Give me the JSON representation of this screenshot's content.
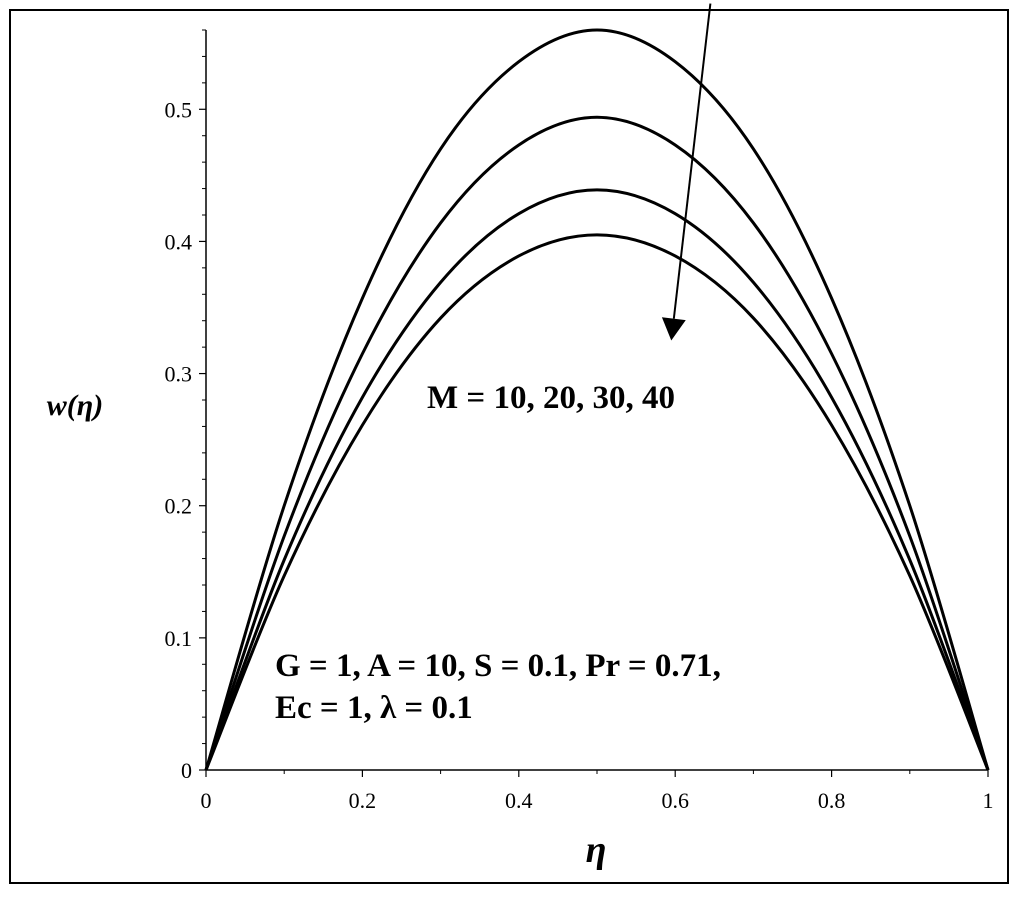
{
  "chart_data": {
    "type": "line",
    "xlabel": "η",
    "ylabel": "w(η)",
    "xlim": [
      0,
      1
    ],
    "ylim": [
      0,
      0.56
    ],
    "x_ticks": [
      "0",
      "0.2",
      "0.4",
      "0.6",
      "0.8",
      "1"
    ],
    "y_ticks": [
      "0",
      "0.1",
      "0.2",
      "0.3",
      "0.4",
      "0.5"
    ],
    "x": [
      0,
      0.1,
      0.2,
      0.3,
      0.4,
      0.5,
      0.6,
      0.7,
      0.8,
      0.9,
      1
    ],
    "series": [
      {
        "values": [
          0,
          0.2,
          0.357,
          0.47,
          0.536,
          0.56,
          0.536,
          0.47,
          0.357,
          0.2,
          0
        ]
      },
      {
        "values": [
          0,
          0.177,
          0.315,
          0.414,
          0.473,
          0.494,
          0.473,
          0.414,
          0.315,
          0.177,
          0
        ]
      },
      {
        "values": [
          0,
          0.159,
          0.282,
          0.369,
          0.421,
          0.439,
          0.421,
          0.369,
          0.282,
          0.159,
          0
        ]
      },
      {
        "values": [
          0,
          0.147,
          0.261,
          0.342,
          0.389,
          0.405,
          0.389,
          0.342,
          0.261,
          0.147,
          0
        ]
      }
    ],
    "grid": false,
    "legend": "none",
    "annotations": {
      "trend": "M = 10, 20, 30, 40",
      "params_line1": "G = 1, A = 10, S = 0.1, Pr = 0.71,",
      "params_line2": "Ec = 1, λ = 0.1"
    },
    "trend_arrow": {
      "from": [
        0.645,
        0.58
      ],
      "to": [
        0.595,
        0.325
      ]
    },
    "colors": {
      "line": "#000000",
      "frame": "#000000"
    }
  }
}
